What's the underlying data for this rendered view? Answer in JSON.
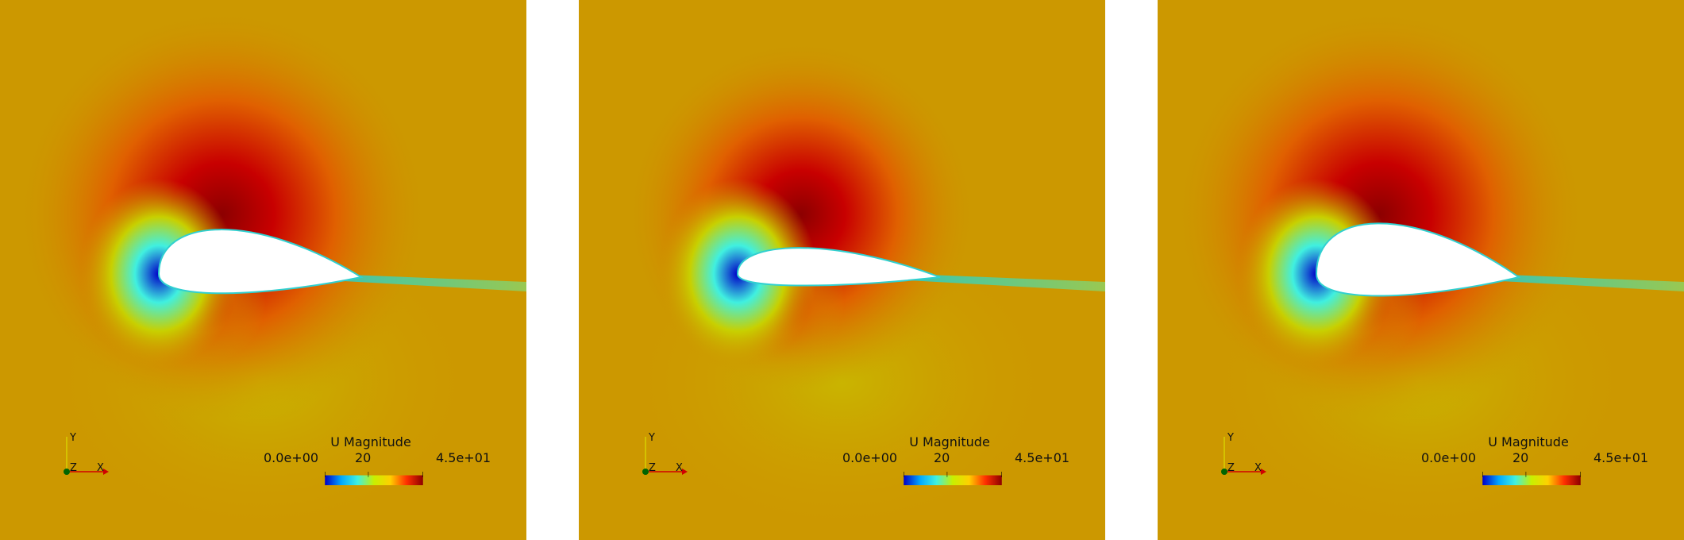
{
  "colors": {
    "background": "#ffffff",
    "field_base": "#cc9800",
    "colormap": [
      "#0000c8",
      "#00a8ff",
      "#40f0e0",
      "#c8f000",
      "#ffd000",
      "#ff3000",
      "#8c0000"
    ]
  },
  "panels": [
    {
      "axes": {
        "y": "Y",
        "z": "Z",
        "x": "X"
      },
      "colorbar": {
        "title": "U Magnitude",
        "min_label": "0.0e+00",
        "mid_label": "20",
        "max_label": "4.5e+01"
      },
      "airfoil_thickness": 0.22,
      "high_speed_intensity": 1.0
    },
    {
      "axes": {
        "y": "Y",
        "z": "Z",
        "x": "X"
      },
      "colorbar": {
        "title": "U Magnitude",
        "min_label": "0.0e+00",
        "mid_label": "20",
        "max_label": "4.5e+01"
      },
      "airfoil_thickness": 0.13,
      "high_speed_intensity": 0.85
    },
    {
      "axes": {
        "y": "Y",
        "z": "Z",
        "x": "X"
      },
      "colorbar": {
        "title": "U Magnitude",
        "min_label": "0.0e+00",
        "mid_label": "20",
        "max_label": "4.5e+01"
      },
      "airfoil_thickness": 0.25,
      "high_speed_intensity": 1.0
    }
  ]
}
